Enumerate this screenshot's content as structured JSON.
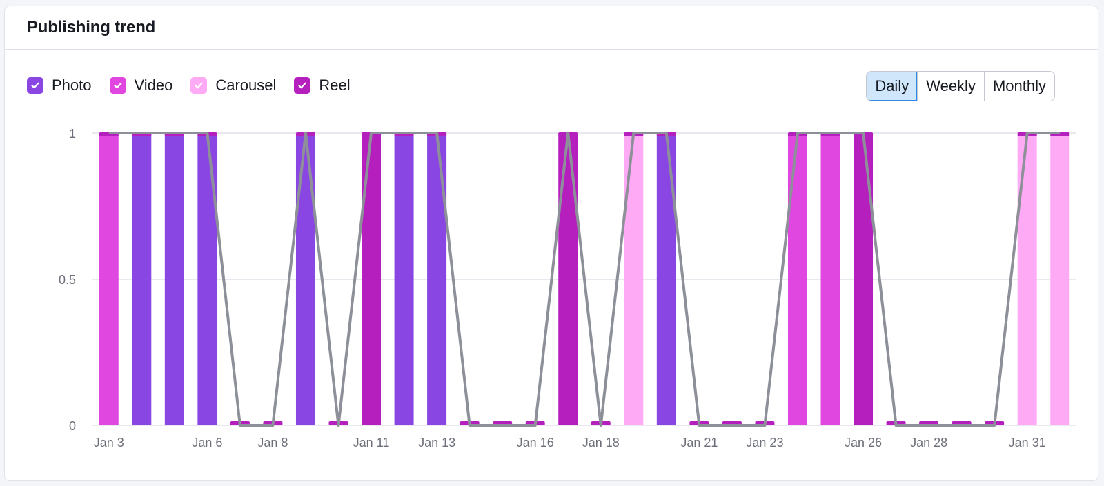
{
  "card": {
    "title": "Publishing trend"
  },
  "legend": [
    {
      "label": "Photo",
      "color": "#8a46e2"
    },
    {
      "label": "Video",
      "color": "#e046e0"
    },
    {
      "label": "Carousel",
      "color": "#ffaaf5"
    },
    {
      "label": "Reel",
      "color": "#b41fbe"
    }
  ],
  "period_toggle": {
    "options": [
      "Daily",
      "Weekly",
      "Monthly"
    ],
    "selected": "Daily"
  },
  "chart_data": {
    "type": "bar",
    "stacked": true,
    "grid": true,
    "ylim": [
      0,
      1
    ],
    "yticks": [
      "1",
      "0.5",
      "0"
    ],
    "categories": [
      "Jan 3",
      "Jan 4",
      "Jan 5",
      "Jan 6",
      "Jan 7",
      "Jan 8",
      "Jan 9",
      "Jan 10",
      "Jan 11",
      "Jan 12",
      "Jan 13",
      "Jan 14",
      "Jan 15",
      "Jan 16",
      "Jan 17",
      "Jan 18",
      "Jan 19",
      "Jan 20",
      "Jan 21",
      "Jan 22",
      "Jan 23",
      "Jan 24",
      "Jan 25",
      "Jan 26",
      "Jan 27",
      "Jan 28",
      "Jan 29",
      "Jan 30",
      "Jan 31",
      "Feb 1"
    ],
    "x_tick_labels": [
      "Jan 3",
      "Jan 6",
      "Jan 8",
      "Jan 11",
      "Jan 13",
      "Jan 16",
      "Jan 18",
      "Jan 21",
      "Jan 23",
      "Jan 26",
      "Jan 28",
      "Jan 31"
    ],
    "series": [
      {
        "name": "Photo",
        "color": "#8a46e2",
        "values": [
          0,
          1,
          1,
          1,
          0,
          0,
          1,
          0,
          0,
          1,
          1,
          0,
          0,
          0,
          0,
          0,
          0,
          1,
          0,
          0,
          0,
          0,
          0,
          0,
          0,
          0,
          0,
          0,
          0,
          0
        ]
      },
      {
        "name": "Video",
        "color": "#e046e0",
        "values": [
          1,
          0,
          0,
          0,
          0,
          0,
          0,
          0,
          0,
          0,
          0,
          0,
          0,
          0,
          0,
          0,
          0,
          0,
          0,
          0,
          0,
          1,
          1,
          0,
          0,
          0,
          0,
          0,
          0,
          0
        ]
      },
      {
        "name": "Carousel",
        "color": "#ffaaf5",
        "values": [
          0,
          0,
          0,
          0,
          0,
          0,
          0,
          0,
          0,
          0,
          0,
          0,
          0,
          0,
          0,
          0,
          1,
          0,
          0,
          0,
          0,
          0,
          0,
          0,
          0,
          0,
          0,
          0,
          1,
          1
        ]
      },
      {
        "name": "Reel",
        "color": "#b41fbe",
        "values": [
          0,
          0,
          0,
          0,
          0,
          0,
          0,
          0,
          1,
          0,
          0,
          0,
          0,
          0,
          1,
          0,
          0,
          0,
          0,
          0,
          0,
          0,
          0,
          1,
          0,
          0,
          0,
          0,
          0,
          0
        ]
      }
    ],
    "line": {
      "color": "#8e9099",
      "values": [
        1,
        1,
        1,
        1,
        0,
        0,
        1,
        0,
        1,
        1,
        1,
        0,
        0,
        0,
        1,
        0,
        1,
        1,
        0,
        0,
        0,
        1,
        1,
        1,
        0,
        0,
        0,
        0,
        1,
        1
      ]
    }
  }
}
